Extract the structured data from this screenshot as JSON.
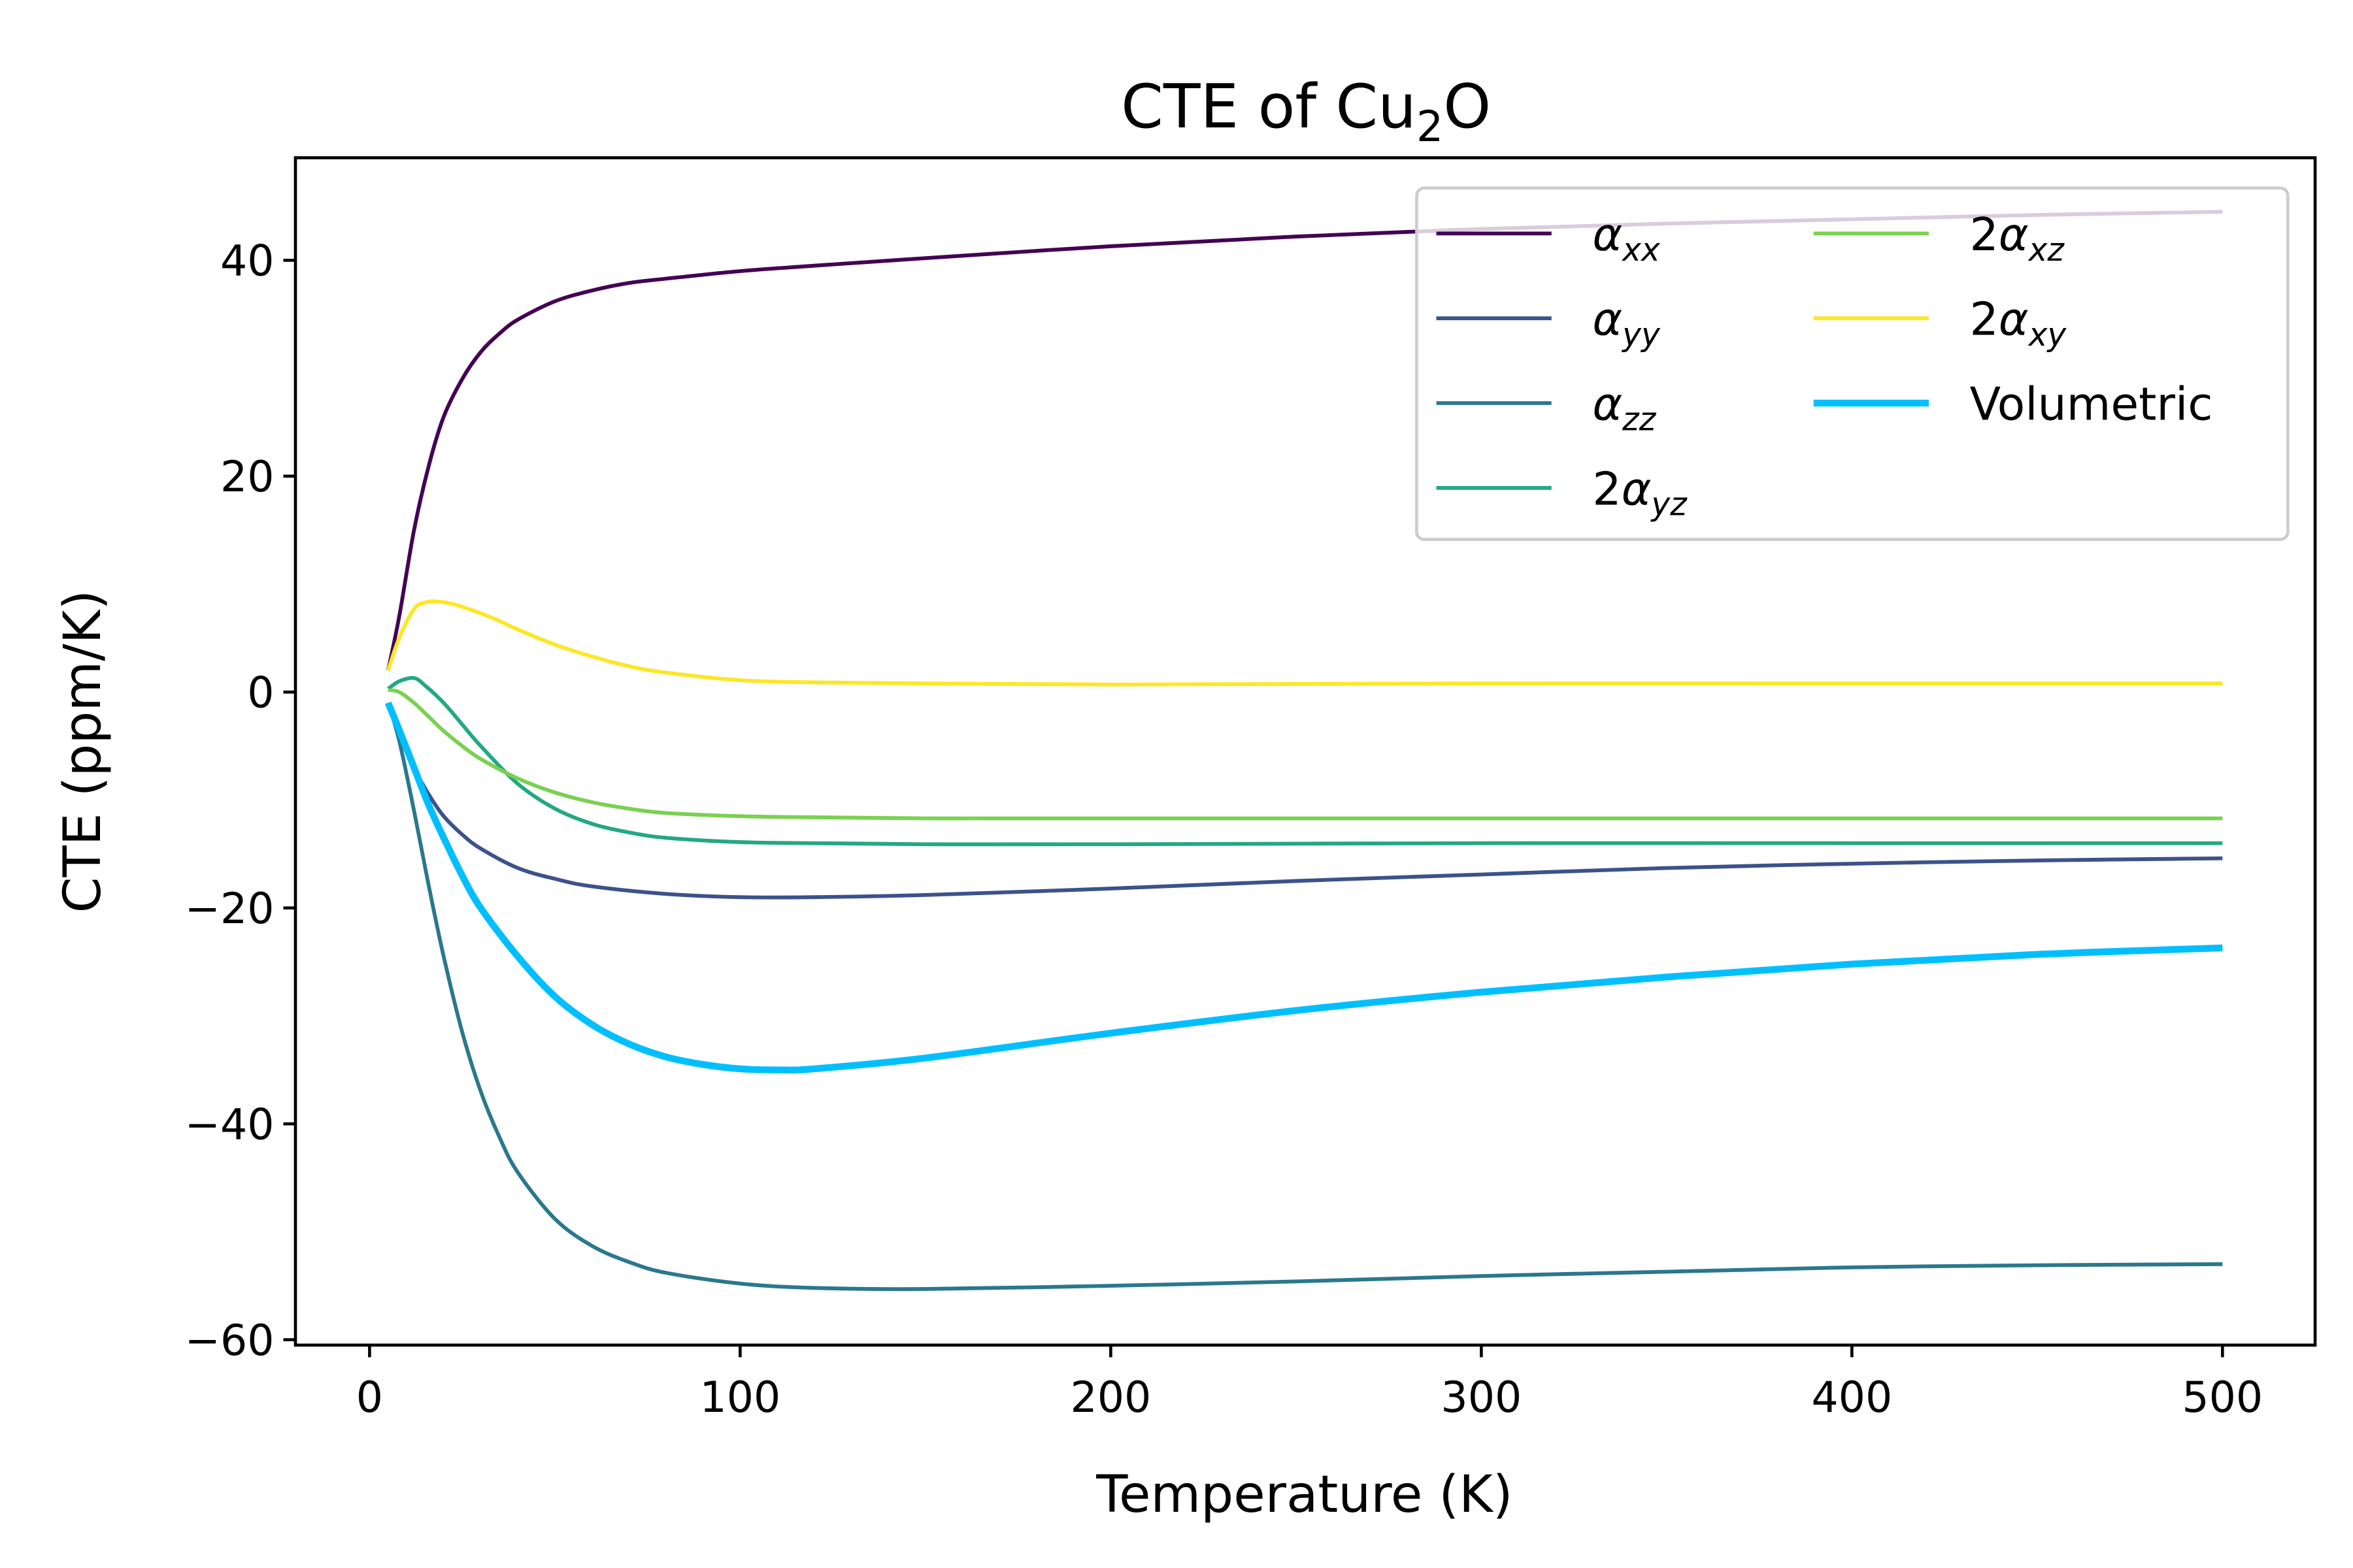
{
  "chart_data": {
    "type": "line",
    "title_main": "CTE of Cu",
    "title_sub": "2",
    "title_tail": "O",
    "xlabel": "Temperature (K)",
    "ylabel": "CTE (ppm/K)",
    "xlim": [
      -20,
      525
    ],
    "ylim": [
      -60.5,
      49.5
    ],
    "xticks": [
      0,
      100,
      200,
      300,
      400,
      500
    ],
    "yticks": [
      40,
      20,
      0,
      -20,
      -40,
      -60
    ],
    "grid": false,
    "legend_position": "top-right",
    "legend_columns": 2,
    "series": [
      {
        "name": "α_xx",
        "prefix": "",
        "sym": "α",
        "sub": "xx",
        "color": "#440154",
        "width": 2.5,
        "x": [
          5,
          8,
          12,
          16,
          20,
          25,
          30,
          35,
          40,
          50,
          60,
          70,
          80,
          100,
          120,
          150,
          200,
          250,
          300,
          350,
          400,
          450,
          500
        ],
        "y": [
          2,
          7,
          15,
          21,
          25.5,
          29,
          31.5,
          33.2,
          34.5,
          36.2,
          37.2,
          37.9,
          38.3,
          39,
          39.5,
          40.2,
          41.3,
          42.2,
          42.9,
          43.4,
          43.8,
          44.2,
          44.5
        ]
      },
      {
        "name": "α_yy",
        "prefix": "",
        "sym": "α",
        "sub": "yy",
        "color": "#3b528b",
        "width": 2.5,
        "x": [
          5,
          8,
          12,
          16,
          20,
          25,
          30,
          40,
          50,
          60,
          80,
          100,
          120,
          150,
          200,
          250,
          300,
          350,
          400,
          450,
          500
        ],
        "y": [
          -1,
          -3.5,
          -7,
          -9.5,
          -11.5,
          -13.2,
          -14.5,
          -16.3,
          -17.3,
          -18,
          -18.7,
          -19,
          -19,
          -18.8,
          -18.2,
          -17.5,
          -16.9,
          -16.3,
          -15.9,
          -15.6,
          -15.4
        ]
      },
      {
        "name": "α_zz",
        "prefix": "",
        "sym": "α",
        "sub": "zz",
        "color": "#21918c",
        "width": 2.5,
        "x": [
          5,
          8,
          12,
          16,
          20,
          25,
          30,
          35,
          40,
          50,
          60,
          70,
          80,
          100,
          120,
          150,
          200,
          250,
          300,
          350,
          400,
          450,
          500
        ],
        "y": [
          -1,
          -4.5,
          -11,
          -18,
          -24.5,
          -31.5,
          -37,
          -41.2,
          -44.5,
          -48.8,
          -51.3,
          -52.8,
          -53.8,
          -54.8,
          -55.2,
          -55.3,
          -55,
          -54.6,
          -54.1,
          -53.7,
          -53.3,
          -53.1,
          -53
        ],
        "color_override": "#2a788e"
      },
      {
        "name": "2α_yz",
        "prefix": "2",
        "sym": "α",
        "sub": "yz",
        "color": "#22a884",
        "width": 2.5,
        "x": [
          5,
          8,
          12,
          15,
          20,
          25,
          30,
          40,
          50,
          60,
          70,
          80,
          100,
          120,
          150,
          200,
          300,
          400,
          500
        ],
        "y": [
          0.3,
          1,
          1.3,
          0.6,
          -1,
          -3,
          -5,
          -8.5,
          -10.8,
          -12.2,
          -13,
          -13.5,
          -13.9,
          -14,
          -14.1,
          -14.1,
          -14,
          -14,
          -14
        ]
      },
      {
        "name": "2α_xz",
        "prefix": "2",
        "sym": "α",
        "sub": "xz",
        "color": "#7ad151",
        "width": 2.5,
        "x": [
          5,
          8,
          12,
          16,
          20,
          25,
          30,
          40,
          50,
          60,
          70,
          80,
          100,
          120,
          150,
          200,
          300,
          400,
          500
        ],
        "y": [
          0.2,
          0,
          -1,
          -2.3,
          -3.6,
          -5,
          -6.2,
          -8,
          -9.3,
          -10.2,
          -10.8,
          -11.2,
          -11.5,
          -11.6,
          -11.7,
          -11.7,
          -11.7,
          -11.7,
          -11.7
        ]
      },
      {
        "name": "2α_xy",
        "prefix": "2",
        "sym": "α",
        "sub": "xy",
        "color": "#fde725",
        "width": 2.5,
        "x": [
          5,
          8,
          12,
          15,
          18,
          22,
          25,
          30,
          35,
          40,
          50,
          60,
          70,
          80,
          100,
          120,
          150,
          200,
          300,
          400,
          500
        ],
        "y": [
          2,
          5,
          7.7,
          8.3,
          8.4,
          8.2,
          7.9,
          7.3,
          6.6,
          5.8,
          4.4,
          3.3,
          2.4,
          1.8,
          1.1,
          0.9,
          0.8,
          0.7,
          0.8,
          0.8,
          0.8
        ]
      },
      {
        "name": "Volumetric",
        "prefix": "",
        "sym": "",
        "sub": "",
        "label": "Volumetric",
        "color": "#00bfff",
        "width": 4.5,
        "x": [
          5,
          8,
          12,
          16,
          20,
          25,
          30,
          40,
          50,
          60,
          70,
          80,
          90,
          100,
          110,
          120,
          150,
          200,
          250,
          300,
          350,
          400,
          450,
          500
        ],
        "y": [
          -1,
          -3.5,
          -7,
          -10.5,
          -13.5,
          -17,
          -20,
          -24.5,
          -28.2,
          -30.8,
          -32.6,
          -33.8,
          -34.5,
          -34.9,
          -35,
          -34.9,
          -33.9,
          -31.6,
          -29.5,
          -27.8,
          -26.4,
          -25.2,
          -24.3,
          -23.7
        ]
      }
    ]
  }
}
